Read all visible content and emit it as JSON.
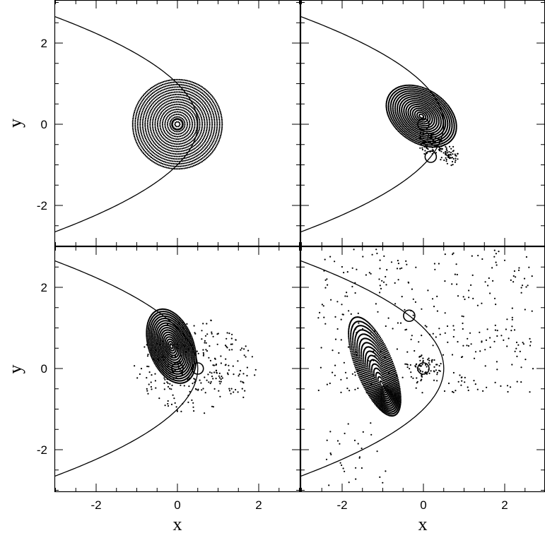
{
  "chart_data": [
    {
      "type": "scatter",
      "panel": "top-left",
      "xlim": [
        -3,
        3
      ],
      "ylim": [
        -3,
        3
      ],
      "xlabel": "",
      "ylabel": "y",
      "x_ticks": [],
      "y_ticks": [
        "-2",
        "0",
        "2"
      ],
      "curve": {
        "kind": "parabola",
        "vertex_x": 0.5,
        "focus_x": 0.0,
        "note_values": {
          "vertex": [
            0.5,
            0
          ],
          "passes": [
            [
              -3,
              2.65
            ],
            [
              -3,
              -2.65
            ]
          ]
        }
      },
      "markers": [
        {
          "x": 0,
          "y": 0
        }
      ],
      "particles": {
        "kind": "disk",
        "center": [
          0,
          0
        ],
        "radius": 1.1,
        "rings": 18
      }
    },
    {
      "type": "scatter",
      "panel": "top-right",
      "xlim": [
        -3,
        3
      ],
      "ylim": [
        -3,
        3
      ],
      "xlabel": "",
      "ylabel": "",
      "x_ticks": [],
      "y_ticks": [],
      "curve": {
        "kind": "parabola",
        "vertex_x": 0.5,
        "focus_x": 0.0
      },
      "markers": [
        {
          "x": 0,
          "y": 0
        },
        {
          "x": 0.18,
          "y": -0.8
        }
      ],
      "particles": {
        "kind": "tilted-disk",
        "center": [
          -0.05,
          0.2
        ],
        "radii": [
          0.95,
          0.65
        ],
        "tilt_deg": -35
      }
    },
    {
      "type": "scatter",
      "panel": "bottom-left",
      "xlim": [
        -3,
        3
      ],
      "ylim": [
        -3,
        3
      ],
      "xlabel": "x",
      "ylabel": "y",
      "x_ticks": [
        "-2",
        "0",
        "2"
      ],
      "y_ticks": [
        "-2",
        "0",
        "2"
      ],
      "curve": {
        "kind": "parabola",
        "vertex_x": 0.5,
        "focus_x": 0.0
      },
      "markers": [
        {
          "x": 0,
          "y": 0
        },
        {
          "x": 0.5,
          "y": 0
        }
      ],
      "particles": {
        "kind": "tilted-disk-with-spread",
        "center": [
          -0.15,
          0.55
        ],
        "radii": [
          0.95,
          0.55
        ],
        "tilt_deg": -70
      }
    },
    {
      "type": "scatter",
      "panel": "bottom-right",
      "xlim": [
        -3,
        3
      ],
      "ylim": [
        -3,
        3
      ],
      "xlabel": "x",
      "ylabel": "",
      "x_ticks": [
        "-2",
        "0",
        "2"
      ],
      "y_ticks": [],
      "curve": {
        "kind": "parabola",
        "vertex_x": 0.5,
        "focus_x": 0.0
      },
      "markers": [
        {
          "x": 0,
          "y": 0
        },
        {
          "x": -0.35,
          "y": 1.3
        }
      ],
      "particles": {
        "kind": "crescent-with-debris",
        "center": [
          -1.2,
          0.05
        ],
        "radii": [
          1.3,
          0.45
        ],
        "tilt_deg": -68
      }
    }
  ]
}
